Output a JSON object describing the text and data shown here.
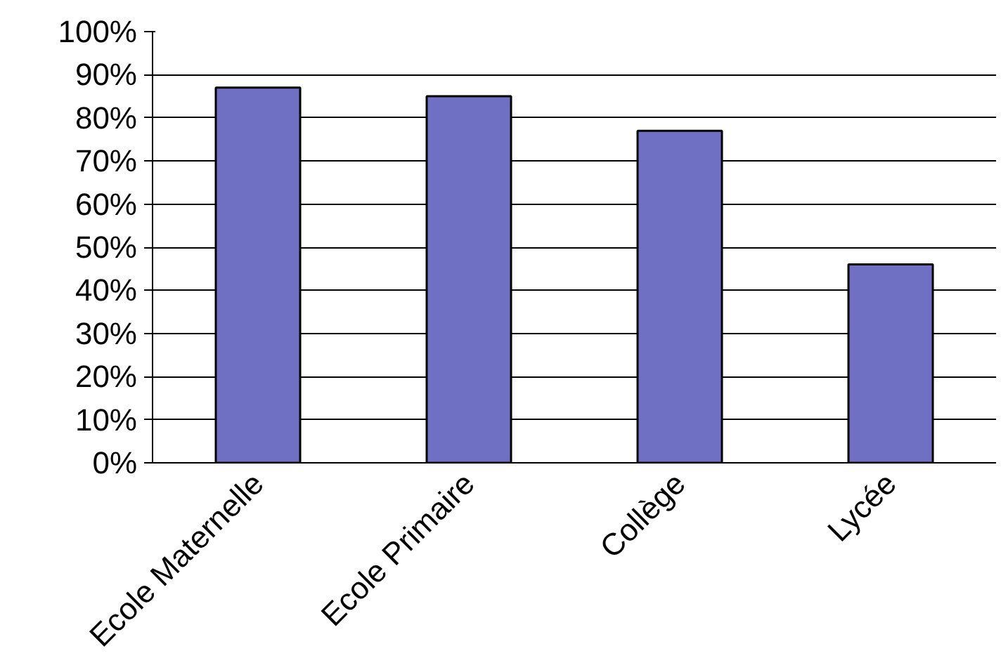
{
  "chart_data": {
    "type": "bar",
    "categories": [
      "Ecole Maternelle",
      "Ecole Primaire",
      "Collège",
      "Lycée"
    ],
    "values": [
      87,
      85,
      77,
      46
    ],
    "color": "#6f6fc4",
    "ylim": [
      0,
      100
    ],
    "yticks": [
      {
        "value": 0,
        "label": "0%"
      },
      {
        "value": 10,
        "label": "10%"
      },
      {
        "value": 20,
        "label": "20%"
      },
      {
        "value": 30,
        "label": "30%"
      },
      {
        "value": 40,
        "label": "40%"
      },
      {
        "value": 50,
        "label": "50%"
      },
      {
        "value": 60,
        "label": "60%"
      },
      {
        "value": 70,
        "label": "70%"
      },
      {
        "value": 80,
        "label": "80%"
      },
      {
        "value": 90,
        "label": "90%"
      },
      {
        "value": 100,
        "label": "100%"
      }
    ],
    "grid": "y"
  }
}
